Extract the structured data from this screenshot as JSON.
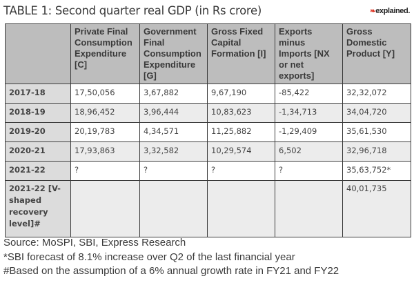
{
  "title": "TABLE 1: Second quarter real GDP (in Rs crore)",
  "logo": {
    "small": "EXPRESS",
    "main": "explained."
  },
  "table": {
    "headers": [
      "",
      "Private Final Consumption Expenditure [C]",
      "Government Final Consumption Expenditure [G]",
      "Gross Fixed Capital Formation [I]",
      "Exports minus Imports [NX or net exports]",
      "Gross Domestic Product [Y]"
    ],
    "rows": [
      [
        "2017-18",
        "17,50,056",
        "3,67,882",
        "9,67,190",
        "-85,422",
        "32,32,072"
      ],
      [
        "2018-19",
        "18,96,452",
        "3,96,444",
        "10,83,623",
        "-1,34,713",
        "34,04,720"
      ],
      [
        "2019-20",
        "20,19,783",
        "4,34,571",
        "11,25,882",
        "-1,29,409",
        "35,61,530"
      ],
      [
        "2020-21",
        "17,93,863",
        "3,32,582",
        "10,29,574",
        "6,502",
        "32,96,718"
      ],
      [
        "2021-22",
        "?",
        "?",
        "?",
        "?",
        "35,63,752*"
      ],
      [
        "2021-22 [V-shaped recovery level]#",
        "",
        "",
        "",
        "",
        "40,01,735"
      ]
    ]
  },
  "notes": [
    "Source: MoSPI, SBI, Express Research",
    "*SBI forecast of 8.1% increase over Q2 of the last financial year",
    "#Based on the assumption of a 6% annual growth rate in FY21 and FY22"
  ]
}
